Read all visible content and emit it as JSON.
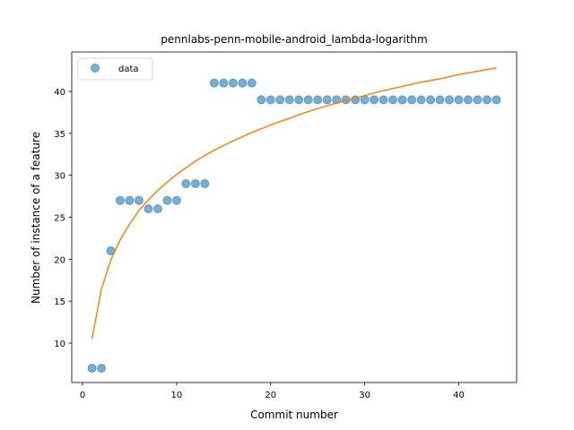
{
  "chart_data": {
    "type": "scatter",
    "title": "pennlabs-penn-mobile-android_lambda-logarithm",
    "xlabel": "Commit number",
    "ylabel": "Number of instance of a feature",
    "xlim": [
      -1.15,
      46.15
    ],
    "ylim": [
      5.3,
      44.7
    ],
    "xticks": [
      0,
      10,
      20,
      30,
      40
    ],
    "yticks": [
      10,
      15,
      20,
      25,
      30,
      35,
      40
    ],
    "grid": false,
    "legend_position": "upper left",
    "series": [
      {
        "name": "data",
        "kind": "scatter",
        "color": "#1f77b4",
        "x": [
          1,
          2,
          3,
          4,
          5,
          6,
          7,
          8,
          9,
          10,
          11,
          12,
          13,
          14,
          15,
          16,
          17,
          18,
          19,
          20,
          21,
          22,
          23,
          24,
          25,
          26,
          27,
          28,
          29,
          30,
          31,
          32,
          33,
          34,
          35,
          36,
          37,
          38,
          39,
          40,
          41,
          42,
          43,
          44
        ],
        "y": [
          7,
          7,
          21,
          27,
          27,
          27,
          26,
          26,
          27,
          27,
          29,
          29,
          29,
          41,
          41,
          41,
          41,
          41,
          39,
          39,
          39,
          39,
          39,
          39,
          39,
          39,
          39,
          39,
          39,
          39,
          39,
          39,
          39,
          39,
          39,
          39,
          39,
          39,
          39,
          39,
          39,
          39,
          39,
          39
        ]
      },
      {
        "kind": "line",
        "color": "#ff7f0e",
        "x": [
          1,
          2,
          3,
          4,
          5,
          6,
          7,
          8,
          9,
          10,
          12,
          14,
          16,
          18,
          20,
          22,
          24,
          26,
          28,
          30,
          32,
          34,
          36,
          38,
          40,
          42,
          44
        ],
        "y": [
          10.5,
          16.4,
          19.9,
          22.3,
          24.2,
          25.8,
          27.1,
          28.2,
          29.2,
          30.1,
          31.7,
          33.0,
          34.1,
          35.1,
          36.0,
          36.8,
          37.6,
          38.3,
          38.9,
          39.5,
          40.1,
          40.6,
          41.1,
          41.5,
          42.0,
          42.4,
          42.8
        ]
      }
    ],
    "legend": [
      "data"
    ]
  }
}
